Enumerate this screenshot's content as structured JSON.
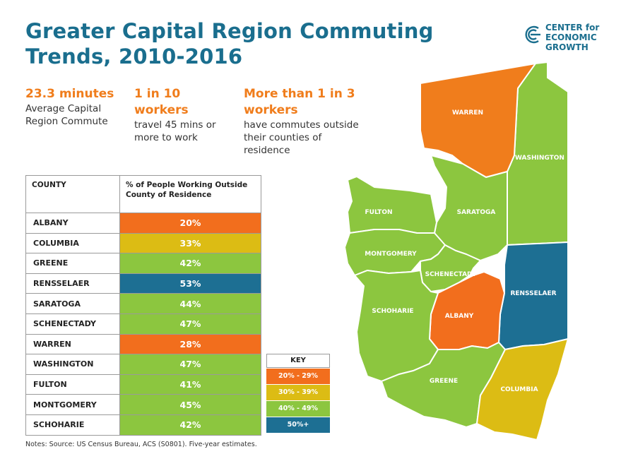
{
  "title": "Greater Capital Region Commuting Trends, 2010-2016",
  "logo": {
    "line1": "CENTER for",
    "line2": "ECONOMIC",
    "line3": "GROWTH"
  },
  "stats": [
    {
      "big": "23.3 minutes",
      "small": "Average Capital Region Commute"
    },
    {
      "big": "1 in 10 workers",
      "small": "travel 45 mins or more to work"
    },
    {
      "big": "More than 1 in 3 workers",
      "small": "have commutes outside their counties of residence"
    }
  ],
  "table": {
    "header_county": "COUNTY",
    "header_pct": "% of People Working Outside County of Residence",
    "rows": [
      {
        "county": "ALBANY",
        "pct": "20%",
        "color": "#f26e1d"
      },
      {
        "county": "COLUMBIA",
        "pct": "33%",
        "color": "#dcbc14"
      },
      {
        "county": "GREENE",
        "pct": "42%",
        "color": "#8cc63f"
      },
      {
        "county": "RENSSELAER",
        "pct": "53%",
        "color": "#1d6f93"
      },
      {
        "county": "SARATOGA",
        "pct": "44%",
        "color": "#8cc63f"
      },
      {
        "county": "SCHENECTADY",
        "pct": "47%",
        "color": "#8cc63f"
      },
      {
        "county": "WARREN",
        "pct": "28%",
        "color": "#f26e1d"
      },
      {
        "county": "WASHINGTON",
        "pct": "47%",
        "color": "#8cc63f"
      },
      {
        "county": "FULTON",
        "pct": "41%",
        "color": "#8cc63f"
      },
      {
        "county": "MONTGOMERY",
        "pct": "45%",
        "color": "#8cc63f"
      },
      {
        "county": "SCHOHARIE",
        "pct": "42%",
        "color": "#8cc63f"
      }
    ]
  },
  "key": {
    "title": "KEY",
    "items": [
      {
        "label": "20% - 29%",
        "color": "#f26e1d"
      },
      {
        "label": "30% - 39%",
        "color": "#dcbc14"
      },
      {
        "label": "40% - 49%",
        "color": "#8cc63f"
      },
      {
        "label": "50%+",
        "color": "#1d6f93"
      }
    ]
  },
  "map_labels": {
    "warren": "WARREN",
    "washington": "WASHINGTON",
    "fulton": "FULTON",
    "saratoga": "SARATOGA",
    "montgomery": "MONTGOMERY",
    "schenectady": "SCHENECTADY",
    "rensselaer": "RENSSELAER",
    "schoharie": "SCHOHARIE",
    "albany": "ALBANY",
    "greene": "GREENE",
    "columbia": "COLUMBIA"
  },
  "notes": "Notes: Source: US Census Bureau, ACS (S0801). Five-year estimates."
}
